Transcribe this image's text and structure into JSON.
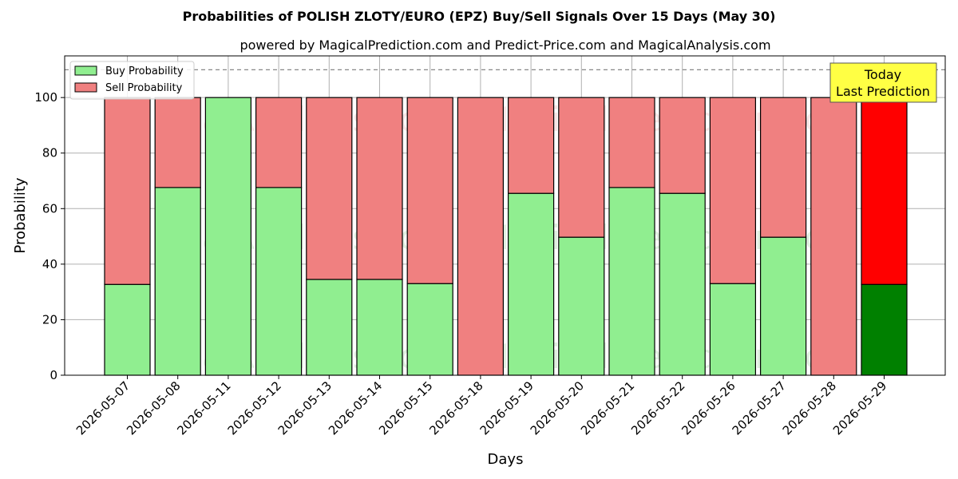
{
  "chart_data": {
    "type": "bar",
    "stacked": true,
    "title": "Probabilities of POLISH ZLOTY/EURO (EPZ) Buy/Sell Signals Over 15 Days (May 30)",
    "subtitle": "powered by MagicalPrediction.com and Predict-Price.com and MagicalAnalysis.com",
    "xlabel": "Days",
    "ylabel": "Probability",
    "ylim": [
      0,
      115
    ],
    "yticks": [
      0,
      20,
      40,
      60,
      80,
      100
    ],
    "ytick_labels": [
      "0",
      "20",
      "40",
      "60",
      "80",
      "100"
    ],
    "grid": true,
    "reference_line": 110,
    "legend_position": "top-left",
    "categories": [
      "2026-05-07",
      "2026-05-08",
      "2026-05-11",
      "2026-05-12",
      "2026-05-13",
      "2026-05-14",
      "2026-05-15",
      "2026-05-18",
      "2026-05-19",
      "2026-05-20",
      "2026-05-21",
      "2026-05-22",
      "2026-05-26",
      "2026-05-27",
      "2026-05-28",
      "2026-05-29"
    ],
    "series": [
      {
        "name": "Buy Probability",
        "color": "#90ee90",
        "values": [
          32.7,
          67.6,
          100,
          67.6,
          34.5,
          34.5,
          33.0,
          0,
          65.5,
          49.7,
          67.6,
          65.5,
          33.0,
          49.7,
          0,
          32.7
        ]
      },
      {
        "name": "Sell Probability",
        "color": "#f08080",
        "values": [
          67.3,
          32.4,
          0,
          32.4,
          65.5,
          65.5,
          67.0,
          100,
          34.5,
          50.3,
          32.4,
          34.5,
          67.0,
          50.3,
          100,
          67.3
        ]
      }
    ],
    "highlight": {
      "category": "2026-05-29",
      "buy_color": "#008000",
      "sell_color": "#ff0000"
    },
    "annotation": {
      "lines": [
        "Today",
        "Last Prediction"
      ],
      "background": "#ffff44",
      "position": "top-right"
    },
    "watermarks": [
      "MagicalAnalysis.com",
      "MagicalPrediction.com"
    ]
  }
}
